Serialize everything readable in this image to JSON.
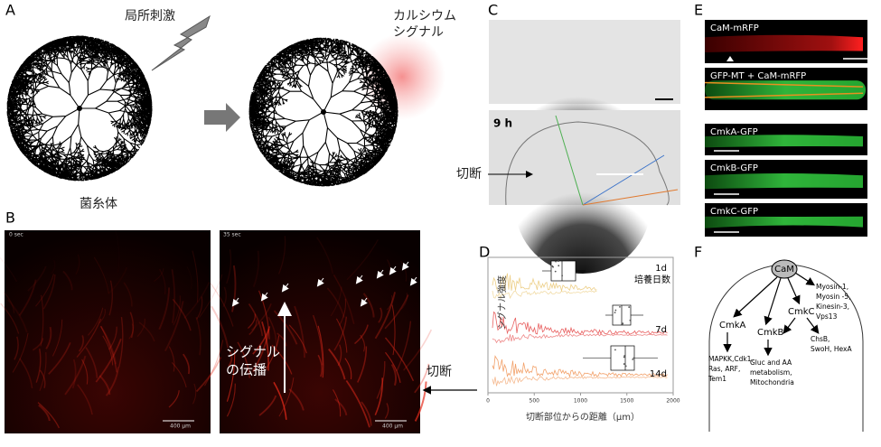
{
  "panel_labels": [
    "A",
    "B",
    "C",
    "D",
    "E",
    "F"
  ],
  "panel_a": {
    "stimulus": "局所刺激",
    "calcium_signal": [
      "カルシウム",
      "シグナル"
    ],
    "mycelium": "菌糸体"
  },
  "panel_b": {
    "time_left": "0 sec",
    "time_right": "35 sec",
    "scale_left": "400 μm",
    "scale_right": "400 μm",
    "propagation": [
      "シグナル",
      "の伝播"
    ],
    "cut": "切断"
  },
  "panel_c": {
    "time": "9 h",
    "cut": "切断"
  },
  "panel_d": {
    "y_label": "シグナル強度",
    "x_label": "切断部位からの距離（μm）",
    "xticks": [
      0,
      500,
      1000,
      1500,
      2000
    ],
    "series_labels": [
      "1d",
      "7d",
      "14d"
    ],
    "legend_title": "培養日数"
  },
  "panel_e": {
    "labels": [
      "CaM-mRFP",
      "GFP-MT + CaM-mRFP",
      "CmkA-GFP",
      "CmkB-GFP",
      "CmkC-GFP"
    ]
  },
  "panel_f": {
    "cam": "CaM",
    "cam_targets": [
      "Myosin-1,",
      "Myosin -5,",
      "Kinesin-3,",
      "Vps13"
    ],
    "cmka": "CmkA",
    "cmkb": "CmkB",
    "cmkc": "CmkC",
    "cmka_targets": [
      "MAPKK,Cdk1,",
      "Ras, ARF,",
      "Tem1"
    ],
    "cmkb_targets": [
      "Gluc and AA",
      "metabolism,",
      "Mitochondria"
    ],
    "cmkc_targets": [
      "ChsB,",
      "SwoH, HexA"
    ]
  }
}
